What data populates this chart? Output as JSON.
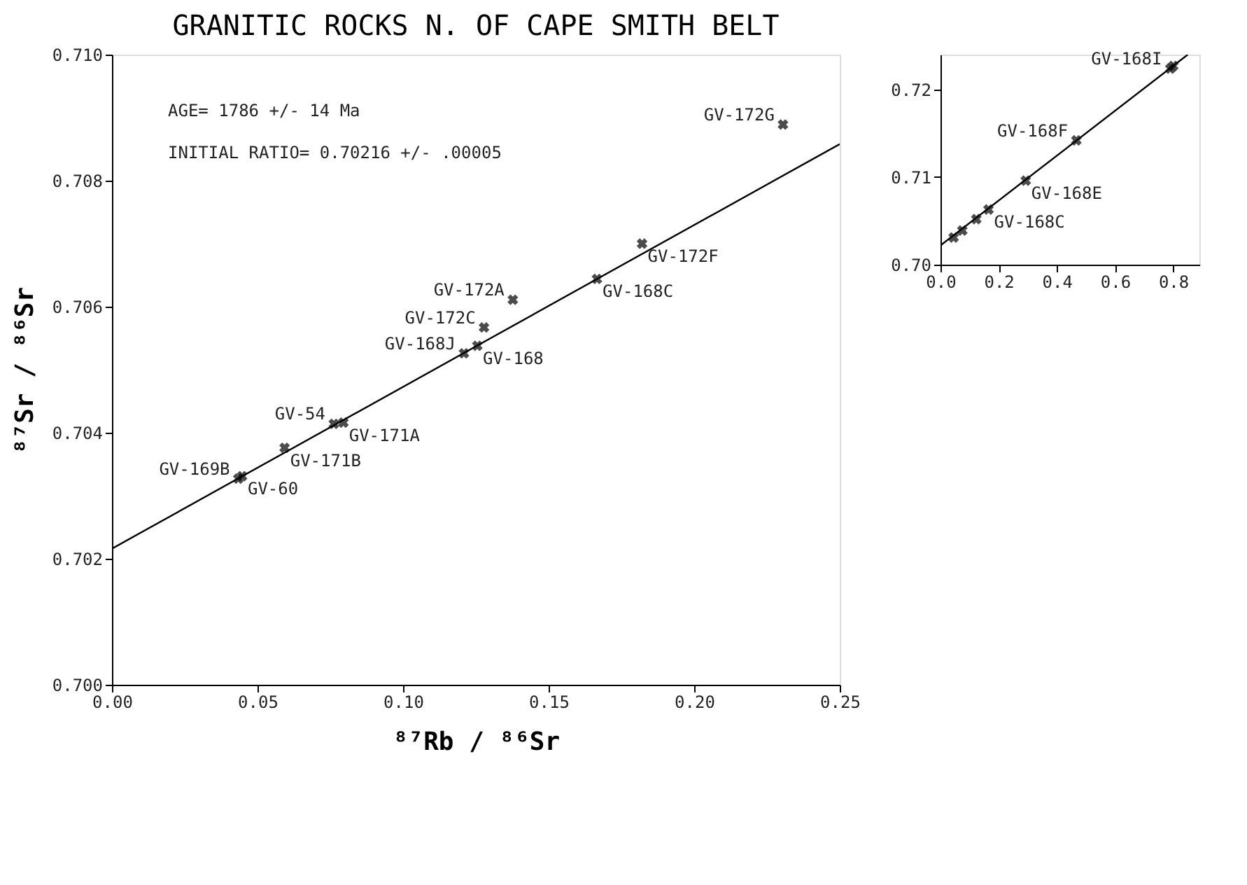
{
  "chart_data": [
    {
      "type": "scatter",
      "title": "GRANITIC ROCKS N. OF CAPE SMITH BELT",
      "xlabel": "⁸⁷Rb / ⁸⁶Sr",
      "ylabel": "⁸⁷Sr / ⁸⁶Sr",
      "xlim": [
        0,
        0.25
      ],
      "xticks": [
        {
          "value": 0,
          "label": "0.00"
        },
        {
          "value": 0.05,
          "label": "0.05"
        },
        {
          "value": 0.1,
          "label": "0.10"
        },
        {
          "value": 0.15,
          "label": "0.15"
        },
        {
          "value": 0.2,
          "label": "0.20"
        },
        {
          "value": 0.25,
          "label": "0.25"
        }
      ],
      "ylim": [
        0.7,
        0.71
      ],
      "yticks": [
        {
          "value": 0.7,
          "label": "0.700"
        },
        {
          "value": 0.702,
          "label": "0.702"
        },
        {
          "value": 0.704,
          "label": "0.704"
        },
        {
          "value": 0.706,
          "label": "0.706"
        },
        {
          "value": 0.708,
          "label": "0.708"
        },
        {
          "value": 0.71,
          "label": "0.710"
        }
      ],
      "series": [
        {
          "marker": "cross",
          "color": "#000000",
          "x": [
            0.0434,
            0.0447,
            0.0593,
            0.0762,
            0.0795,
            0.1209,
            0.1255,
            0.1278,
            0.1377,
            0.1666,
            0.1821,
            0.2305
          ],
          "values": [
            0.70327,
            0.70331,
            0.70376,
            0.70414,
            0.70416,
            0.70526,
            0.70538,
            0.70567,
            0.70611,
            0.70644,
            0.707,
            0.70889
          ]
        },
        {
          "type": "line",
          "color": "#000000",
          "x": [
            0,
            0.25
          ],
          "values": [
            0.70216,
            0.70858
          ]
        }
      ],
      "annotations": [
        "AGE= 1786 +/- 14 Ma",
        "INITIAL RATIO= 0.70216 +/- .00005",
        {
          "text": "GV-169B",
          "x": 0.0434,
          "y": 0.70327
        },
        {
          "text": "GV-60",
          "x": 0.0447,
          "y": 0.70331
        },
        {
          "text": "GV-54",
          "x": 0.0762,
          "y": 0.70414
        },
        {
          "text": "GV-171A",
          "x": 0.0795,
          "y": 0.70416
        },
        {
          "text": "GV-168J",
          "x": 0.1209,
          "y": 0.70526
        },
        {
          "text": "GV-168",
          "x": 0.1255,
          "y": 0.70538
        },
        {
          "text": "GV-172C",
          "x": 0.1278,
          "y": 0.70567
        },
        {
          "text": "GV-171B",
          "x": 0.0593,
          "y": 0.70376
        },
        {
          "text": "GV-172A",
          "x": 0.1377,
          "y": 0.70611
        },
        {
          "text": "GV-168C",
          "x": 0.1666,
          "y": 0.70644
        },
        {
          "text": "GV-172G",
          "x": 0.2305,
          "y": 0.70889
        },
        {
          "text": "GV-172F",
          "x": 0.1821,
          "y": 0.707
        }
      ]
    },
    {
      "type": "scatter",
      "xlim": [
        0,
        0.89
      ],
      "xticks": [
        {
          "value": 0,
          "label": "0.0"
        },
        {
          "value": 0.2,
          "label": "0.2"
        },
        {
          "value": 0.4,
          "label": "0.4"
        },
        {
          "value": 0.6,
          "label": "0.6"
        },
        {
          "value": 0.8,
          "label": "0.8"
        }
      ],
      "ylim": [
        0.7,
        0.724
      ],
      "yticks": [
        {
          "value": 0.7,
          "label": "0.70"
        },
        {
          "value": 0.71,
          "label": "0.71"
        },
        {
          "value": 0.72,
          "label": "0.72"
        }
      ],
      "series": [
        {
          "marker": "cross",
          "color": "#000000",
          "x": [
            0.045,
            0.075,
            0.123,
            0.165,
            0.293,
            0.467,
            0.79,
            0.8
          ],
          "values": [
            0.7031,
            0.7039,
            0.7052,
            0.7063,
            0.7096,
            0.7142,
            0.7224,
            0.7227
          ]
        },
        {
          "type": "line",
          "color": "#000000",
          "x": [
            0,
            0.85
          ],
          "values": [
            0.7022,
            0.724
          ]
        }
      ],
      "annotations": [
        {
          "text": "GV-168I",
          "x": 0.79,
          "y": 0.7224
        },
        {
          "text": "GV-168C",
          "x": 0.165,
          "y": 0.7063
        },
        {
          "text": "GV-168F",
          "x": 0.467,
          "y": 0.7142
        },
        {
          "text": "GV-168E",
          "x": 0.293,
          "y": 0.7096
        }
      ]
    }
  ]
}
